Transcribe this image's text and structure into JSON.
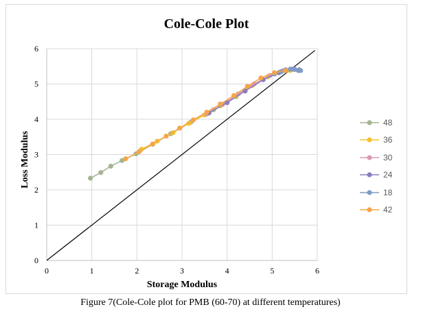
{
  "chart_data": {
    "type": "scatter",
    "title": "Cole-Cole Plot",
    "xlabel": "Storage Modulus",
    "ylabel": "Loss Modulus",
    "xlim": [
      0,
      6
    ],
    "ylim": [
      0,
      6
    ],
    "x_ticks": [
      "0",
      "1",
      "2",
      "3",
      "4",
      "5",
      "6"
    ],
    "y_ticks": [
      "0",
      "1",
      "2",
      "3",
      "4",
      "5",
      "6"
    ],
    "grid": true,
    "legend_position": "right",
    "reference_line": {
      "x": [
        0,
        5.95
      ],
      "y": [
        0,
        5.95
      ],
      "color": "#000000"
    },
    "series": [
      {
        "name": "48",
        "color": "#a5b592",
        "x": [
          0.97,
          1.2,
          1.42,
          1.67,
          1.98,
          2.35,
          2.75,
          3.2,
          3.7,
          4.2
        ],
        "y": [
          2.33,
          2.49,
          2.67,
          2.83,
          3.02,
          3.29,
          3.59,
          3.92,
          4.27,
          4.64
        ]
      },
      {
        "name": "36",
        "color": "#f3c32f",
        "x": [
          2.1,
          2.45,
          2.8,
          3.15,
          3.5,
          3.85,
          4.2,
          4.55,
          4.9,
          5.2,
          5.4
        ],
        "y": [
          3.15,
          3.38,
          3.62,
          3.88,
          4.12,
          4.38,
          4.66,
          4.95,
          5.2,
          5.35,
          5.38
        ]
      },
      {
        "name": "30",
        "color": "#d999b5",
        "x": [
          3.55,
          3.9,
          4.25,
          4.6,
          4.95,
          5.25,
          5.5
        ],
        "y": [
          4.15,
          4.42,
          4.72,
          5.0,
          5.24,
          5.38,
          5.42
        ]
      },
      {
        "name": "24",
        "color": "#8a7dbd",
        "x": [
          3.6,
          4.0,
          4.4,
          4.8,
          5.15,
          5.45,
          5.6
        ],
        "y": [
          4.18,
          4.47,
          4.8,
          5.12,
          5.32,
          5.42,
          5.4
        ]
      },
      {
        "name": "18",
        "color": "#7f9cc5",
        "x": [
          5.05,
          5.2,
          5.3,
          5.4,
          5.5,
          5.58,
          5.63
        ],
        "y": [
          5.28,
          5.35,
          5.4,
          5.42,
          5.41,
          5.38,
          5.38
        ]
      },
      {
        "name": "42",
        "color": "#f5a54a",
        "x": [
          1.75,
          2.05,
          2.35,
          2.65,
          2.95,
          3.25,
          3.55,
          3.85,
          4.15,
          4.45,
          4.75,
          5.05,
          5.3
        ],
        "y": [
          2.88,
          3.08,
          3.3,
          3.52,
          3.75,
          3.98,
          4.2,
          4.43,
          4.67,
          4.93,
          5.17,
          5.32,
          5.38
        ]
      }
    ]
  },
  "caption": "Figure 7(Cole-Cole plot for PMB (60-70) at different temperatures)"
}
